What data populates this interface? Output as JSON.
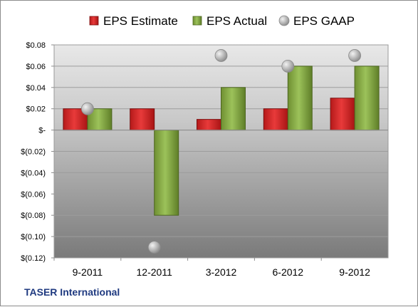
{
  "chart_data": {
    "type": "bar",
    "categories": [
      "9-2011",
      "12-2011",
      "3-2012",
      "6-2012",
      "9-2012"
    ],
    "series": [
      {
        "name": "EPS Estimate",
        "type": "bar",
        "color": "#d42424",
        "values": [
          0.02,
          0.02,
          0.01,
          0.02,
          0.03
        ]
      },
      {
        "name": "EPS Actual",
        "type": "bar",
        "color": "#8fb04a",
        "values": [
          0.02,
          -0.08,
          0.04,
          0.06,
          0.06
        ]
      },
      {
        "name": "EPS GAAP",
        "type": "scatter",
        "color": "#a8a8a8",
        "values": [
          0.02,
          -0.11,
          0.07,
          0.06,
          0.07
        ]
      }
    ],
    "ylim": [
      -0.12,
      0.08
    ],
    "yticks": [
      0.08,
      0.06,
      0.04,
      0.02,
      0,
      -0.02,
      -0.04,
      -0.06,
      -0.08,
      -0.1,
      -0.12
    ],
    "ytick_labels": [
      "$0.08",
      "$0.06",
      "$0.04",
      "$0.02",
      "$-",
      "$(0.02)",
      "$(0.04)",
      "$(0.06)",
      "$(0.08)",
      "$(0.10)",
      "$(0.12)"
    ],
    "legend_position": "top",
    "grid": true
  },
  "footer": {
    "company": "TASER International"
  }
}
